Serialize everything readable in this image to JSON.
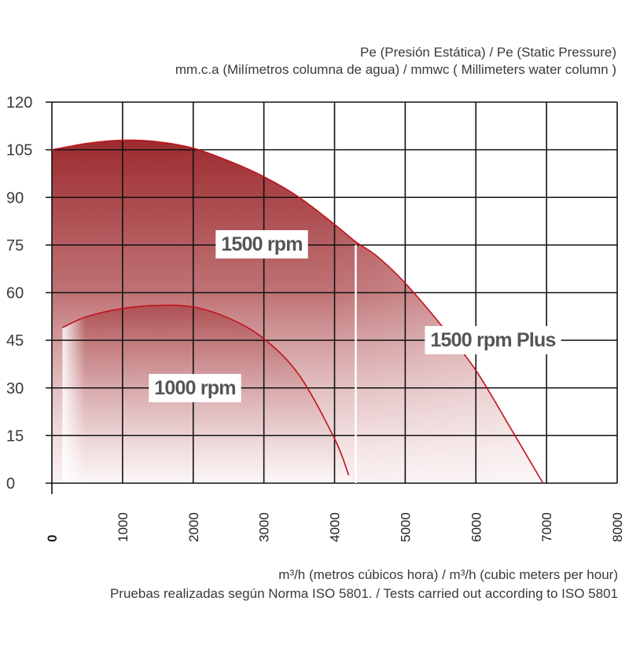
{
  "ylabel_line1": "Pe (Presión Estática) /  Pe (Static Pressure)",
  "ylabel_line2": "mm.c.a (Milímetros columna de agua) / mmwc ( Millimeters water column )",
  "xlabel": "m³/h (metros cúbicos hora) / m³/h (cubic meters per hour)",
  "note": "Pruebas realizadas según Norma ISO 5801. / Tests carried out according to ISO 5801",
  "colors": {
    "curve": "#c0141c",
    "fill_top": "#9c2b2f",
    "grid": "#111111"
  },
  "chart_data": {
    "type": "area",
    "title": "",
    "xlabel": "m³/h (metros cúbicos hora) / m³/h (cubic meters per hour)",
    "ylabel": "Pe (Presión Estática) /  Pe (Static Pressure) — mm.c.a (Milímetros columna de agua) / mmwc ( Millimeters water column )",
    "xlim": [
      0,
      8000
    ],
    "ylim": [
      0,
      120
    ],
    "x_ticks": [
      "0",
      "1000",
      "2000",
      "3000",
      "4000",
      "5000",
      "6000",
      "7000",
      "8000"
    ],
    "y_ticks": [
      "0",
      "15",
      "30",
      "45",
      "60",
      "75",
      "90",
      "105",
      "120"
    ],
    "grid": true,
    "series": [
      {
        "name": "1500 rpm",
        "x": [
          0,
          500,
          1000,
          1500,
          2000,
          2500,
          3000,
          3500,
          4000,
          4300
        ],
        "y": [
          105,
          107,
          108,
          107.5,
          105.5,
          101.5,
          96.5,
          90,
          81.5,
          76
        ]
      },
      {
        "name": "1500 rpm Plus",
        "x": [
          4300,
          4600,
          5000,
          5500,
          6000,
          6500,
          6950
        ],
        "y": [
          76,
          71.5,
          63,
          50,
          35.5,
          17,
          0
        ]
      },
      {
        "name": "1000 rpm",
        "x": [
          150,
          500,
          1000,
          1500,
          2000,
          2500,
          3000,
          3500,
          4000,
          4200
        ],
        "y": [
          49,
          52.5,
          55,
          56,
          55.5,
          52,
          45.5,
          34,
          14,
          2.5
        ]
      }
    ],
    "divider_x": 4300
  }
}
